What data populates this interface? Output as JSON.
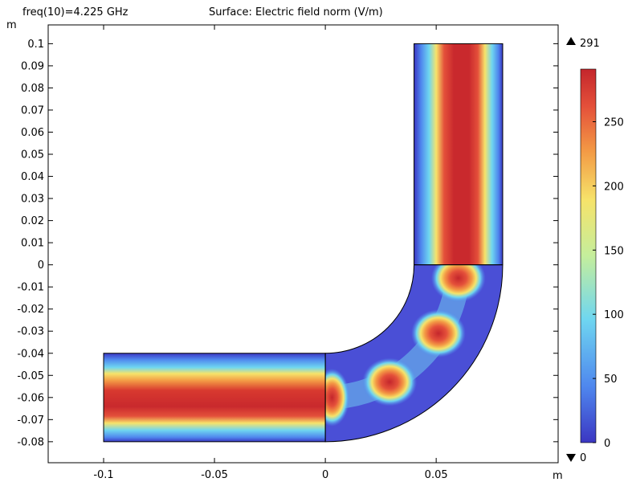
{
  "header": {
    "freq_label": "freq(10)=4.225 GHz",
    "plot_title": "Surface: Electric field norm (V/m)"
  },
  "chart_data": {
    "type": "heatmap",
    "title": "Surface: Electric field norm (V/m)",
    "subtitle": "freq(10)=4.225 GHz",
    "x_unit": "m",
    "y_unit": "m",
    "xlim": [
      -0.125,
      0.105
    ],
    "ylim": [
      -0.0895,
      0.1085
    ],
    "x_ticks": [
      {
        "value": -0.1,
        "label": "-0.1"
      },
      {
        "value": -0.05,
        "label": "-0.05"
      },
      {
        "value": 0,
        "label": "0"
      },
      {
        "value": 0.05,
        "label": "0.05"
      }
    ],
    "y_ticks": [
      {
        "value": 0.1,
        "label": "0.1"
      },
      {
        "value": 0.09,
        "label": "0.09"
      },
      {
        "value": 0.08,
        "label": "0.08"
      },
      {
        "value": 0.07,
        "label": "0.07"
      },
      {
        "value": 0.06,
        "label": "0.06"
      },
      {
        "value": 0.05,
        "label": "0.05"
      },
      {
        "value": 0.04,
        "label": "0.04"
      },
      {
        "value": 0.03,
        "label": "0.03"
      },
      {
        "value": 0.02,
        "label": "0.02"
      },
      {
        "value": 0.01,
        "label": "0.01"
      },
      {
        "value": 0,
        "label": "0"
      },
      {
        "value": -0.01,
        "label": "-0.01"
      },
      {
        "value": -0.02,
        "label": "-0.02"
      },
      {
        "value": -0.03,
        "label": "-0.03"
      },
      {
        "value": -0.04,
        "label": "-0.04"
      },
      {
        "value": -0.05,
        "label": "-0.05"
      },
      {
        "value": -0.06,
        "label": "-0.06"
      },
      {
        "value": -0.07,
        "label": "-0.07"
      },
      {
        "value": -0.08,
        "label": "-0.08"
      }
    ],
    "geometry": {
      "horizontal_arm": {
        "x": [
          -0.1,
          0
        ],
        "y": [
          -0.08,
          -0.04
        ]
      },
      "vertical_arm": {
        "x": [
          0.04,
          0.08
        ],
        "y": [
          0,
          0.1
        ]
      },
      "bend": {
        "center": [
          0,
          0
        ],
        "inner_radius": 0.04,
        "outer_radius": 0.08
      }
    },
    "field_max": 291,
    "field_min": 0,
    "hotspots": [
      {
        "x": 0.029,
        "y": -0.053,
        "value": 280
      },
      {
        "x": 0.051,
        "y": -0.031,
        "value": 280
      },
      {
        "x": 0.06,
        "y": -0.006,
        "value": 275
      }
    ],
    "colorbar": {
      "min": 0,
      "max": 291,
      "max_label": "291",
      "min_label": "0",
      "ticks": [
        {
          "value": 0,
          "label": "0"
        },
        {
          "value": 50,
          "label": "50"
        },
        {
          "value": 100,
          "label": "100"
        },
        {
          "value": 150,
          "label": "150"
        },
        {
          "value": 200,
          "label": "200"
        },
        {
          "value": 250,
          "label": "250"
        }
      ]
    },
    "colormap": [
      "#3b36c2",
      "#4f87ee",
      "#6fd6f0",
      "#c5ee9c",
      "#f6e36a",
      "#f39a45",
      "#e4503a",
      "#c4262c"
    ]
  }
}
